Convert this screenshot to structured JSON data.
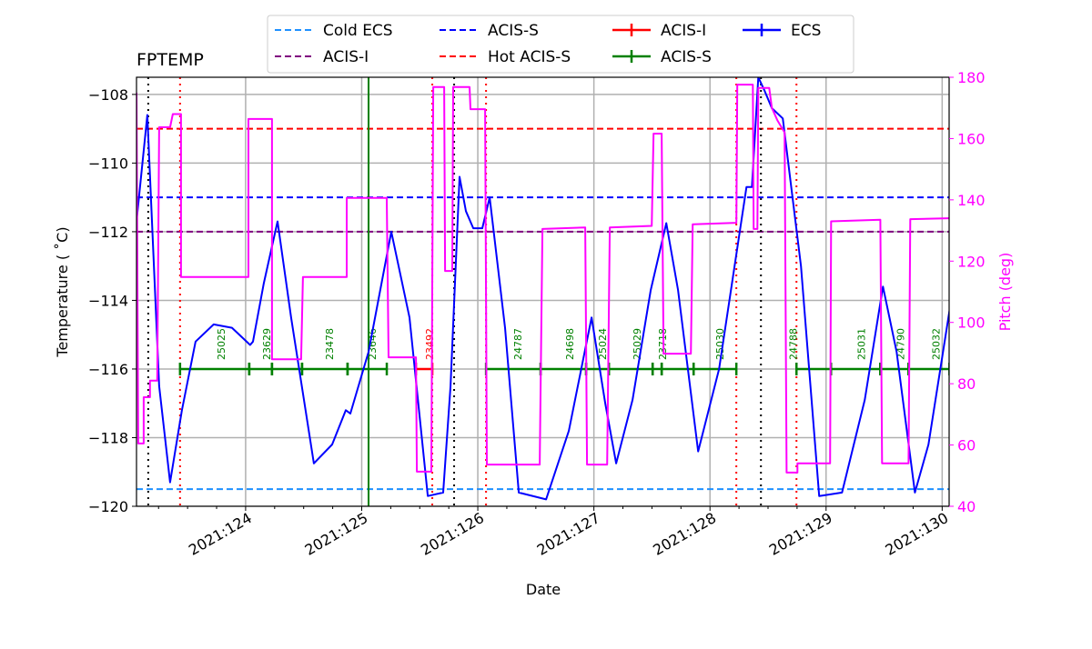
{
  "chart_data": {
    "type": "line",
    "title": "FPTEMP",
    "xlabel": "Date",
    "ylabel": "Temperature ($^\\circ$C)",
    "ylabel_display": "Temperature ( ˚C)",
    "y2label": "Pitch (deg)",
    "xlim": [
      123.06,
      130.06
    ],
    "ylim": [
      -120,
      -107.5
    ],
    "y2lim": [
      40,
      180
    ],
    "grid": true,
    "x_ticks": [
      {
        "value": 124,
        "label": "2021:124"
      },
      {
        "value": 125,
        "label": "2021:125"
      },
      {
        "value": 126,
        "label": "2021:126"
      },
      {
        "value": 127,
        "label": "2021:127"
      },
      {
        "value": 128,
        "label": "2021:128"
      },
      {
        "value": 129,
        "label": "2021:129"
      },
      {
        "value": 130,
        "label": "2021:130"
      }
    ],
    "y_ticks": [
      -120,
      -118,
      -116,
      -114,
      -112,
      -110,
      -108
    ],
    "y2_ticks": [
      40,
      60,
      80,
      100,
      120,
      140,
      160,
      180
    ],
    "legend_position": "top",
    "legend": [
      {
        "label": "Cold ECS",
        "color": "#1e90ff",
        "style": "dashed"
      },
      {
        "label": "ACIS-I",
        "color": "#800080",
        "style": "dashed"
      },
      {
        "label": "ACIS-S",
        "color": "#0000ff",
        "style": "dashed"
      },
      {
        "label": "Hot ACIS-S",
        "color": "#ff0000",
        "style": "dashed"
      },
      {
        "label": "ACIS-I",
        "color": "#ff0000",
        "style": "errorbar"
      },
      {
        "label": "ACIS-S",
        "color": "#008000",
        "style": "errorbar"
      },
      {
        "label": "ECS",
        "color": "#0000ff",
        "style": "errorbar"
      }
    ],
    "limit_lines": [
      {
        "name": "Cold ECS",
        "value": -119.5,
        "color": "#1e90ff"
      },
      {
        "name": "ACIS-I",
        "value": -112,
        "color": "#800080"
      },
      {
        "name": "ACIS-S",
        "value": -111,
        "color": "#0000ff"
      },
      {
        "name": "Hot ACIS-S",
        "value": -109,
        "color": "#ff0000"
      }
    ],
    "series": [
      {
        "axis": "left",
        "color": "#0000ff",
        "points": [
          [
            123.06,
            -111.7
          ],
          [
            123.153,
            -108.6
          ],
          [
            123.255,
            -116.5
          ],
          [
            123.349,
            -119.3
          ],
          [
            123.451,
            -117.2
          ],
          [
            123.569,
            -115.2
          ],
          [
            123.725,
            -114.7
          ],
          [
            123.882,
            -114.8
          ],
          [
            124.039,
            -115.3
          ],
          [
            124.063,
            -115.2
          ],
          [
            124.157,
            -113.5
          ],
          [
            124.275,
            -111.7
          ],
          [
            124.392,
            -114.5
          ],
          [
            124.588,
            -118.75
          ],
          [
            124.745,
            -118.2
          ],
          [
            124.863,
            -117.2
          ],
          [
            124.902,
            -117.3
          ],
          [
            125.059,
            -115.5
          ],
          [
            125.255,
            -112.0
          ],
          [
            125.412,
            -114.5
          ],
          [
            125.569,
            -119.7
          ],
          [
            125.702,
            -119.6
          ],
          [
            125.765,
            -116.5
          ],
          [
            125.843,
            -110.4
          ],
          [
            125.898,
            -111.4
          ],
          [
            125.961,
            -111.9
          ],
          [
            126.039,
            -111.9
          ],
          [
            126.102,
            -111.0
          ],
          [
            126.235,
            -114.8
          ],
          [
            126.353,
            -119.6
          ],
          [
            126.588,
            -119.8
          ],
          [
            126.784,
            -117.8
          ],
          [
            126.98,
            -114.5
          ],
          [
            127.098,
            -117.0
          ],
          [
            127.192,
            -118.75
          ],
          [
            127.333,
            -116.9
          ],
          [
            127.49,
            -113.7
          ],
          [
            127.624,
            -111.75
          ],
          [
            127.725,
            -113.7
          ],
          [
            127.898,
            -118.4
          ],
          [
            128.078,
            -116.0
          ],
          [
            128.314,
            -110.7
          ],
          [
            128.361,
            -110.7
          ],
          [
            128.416,
            -107.5
          ],
          [
            128.471,
            -107.9
          ],
          [
            128.533,
            -108.4
          ],
          [
            128.627,
            -108.7
          ],
          [
            128.784,
            -113.0
          ],
          [
            128.941,
            -119.7
          ],
          [
            129.137,
            -119.6
          ],
          [
            129.333,
            -116.9
          ],
          [
            129.49,
            -113.6
          ],
          [
            129.608,
            -115.5
          ],
          [
            129.765,
            -119.6
          ],
          [
            129.882,
            -118.2
          ],
          [
            130.063,
            -114.3
          ]
        ]
      },
      {
        "axis": "right",
        "color": "#ff00ff",
        "points": [
          [
            123.06,
            175
          ],
          [
            123.075,
            60.5
          ],
          [
            123.122,
            60.5
          ],
          [
            123.122,
            75.6
          ],
          [
            123.176,
            75.6
          ],
          [
            123.176,
            81
          ],
          [
            123.239,
            81
          ],
          [
            123.255,
            163.7
          ],
          [
            123.349,
            163.7
          ],
          [
            123.373,
            168
          ],
          [
            123.443,
            168
          ],
          [
            123.443,
            114.8
          ],
          [
            124.024,
            114.8
          ],
          [
            124.024,
            166.4
          ],
          [
            124.227,
            166.4
          ],
          [
            124.227,
            88
          ],
          [
            124.478,
            88
          ],
          [
            124.494,
            114.8
          ],
          [
            124.871,
            114.8
          ],
          [
            124.871,
            140.6
          ],
          [
            125.216,
            140.6
          ],
          [
            125.231,
            88.6
          ],
          [
            125.467,
            88.6
          ],
          [
            125.475,
            51.3
          ],
          [
            125.6,
            51.3
          ],
          [
            125.616,
            176.8
          ],
          [
            125.71,
            176.8
          ],
          [
            125.718,
            116.8
          ],
          [
            125.78,
            116.8
          ],
          [
            125.788,
            176.8
          ],
          [
            125.929,
            176.8
          ],
          [
            125.937,
            169.6
          ],
          [
            126.063,
            169.6
          ],
          [
            126.078,
            53.6
          ],
          [
            126.533,
            53.6
          ],
          [
            126.557,
            130.5
          ],
          [
            126.925,
            131
          ],
          [
            126.941,
            53.6
          ],
          [
            127.114,
            53.6
          ],
          [
            127.137,
            131
          ],
          [
            127.498,
            131.5
          ],
          [
            127.514,
            161.6
          ],
          [
            127.584,
            161.6
          ],
          [
            127.6,
            89.8
          ],
          [
            127.835,
            89.8
          ],
          [
            127.851,
            132
          ],
          [
            128.227,
            132.5
          ],
          [
            128.235,
            177.6
          ],
          [
            128.369,
            177.6
          ],
          [
            128.376,
            130.5
          ],
          [
            128.408,
            130.5
          ],
          [
            128.416,
            176.5
          ],
          [
            128.51,
            176.5
          ],
          [
            128.533,
            170
          ],
          [
            128.58,
            166
          ],
          [
            128.643,
            162
          ],
          [
            128.66,
            51
          ],
          [
            128.753,
            51
          ],
          [
            128.753,
            54
          ],
          [
            129.035,
            54
          ],
          [
            129.043,
            133
          ],
          [
            129.467,
            133.5
          ],
          [
            129.482,
            54
          ],
          [
            129.71,
            54
          ],
          [
            129.725,
            133.7
          ],
          [
            130.063,
            134
          ]
        ]
      }
    ],
    "vlines": [
      {
        "value": 123.435,
        "color": "#ff0000",
        "style": "dotted"
      },
      {
        "value": 125.608,
        "color": "#ff0000",
        "style": "dotted"
      },
      {
        "value": 126.071,
        "color": "#ff0000",
        "style": "dotted"
      },
      {
        "value": 128.227,
        "color": "#ff0000",
        "style": "dotted"
      },
      {
        "value": 128.745,
        "color": "#ff0000",
        "style": "dotted"
      },
      {
        "value": 123.161,
        "color": "#000000",
        "style": "dotted"
      },
      {
        "value": 125.796,
        "color": "#000000",
        "style": "dotted"
      },
      {
        "value": 128.439,
        "color": "#000000",
        "style": "dotted"
      },
      {
        "value": 125.059,
        "color": "#008000",
        "style": "solid"
      }
    ],
    "observations_level": -116,
    "observations": [
      {
        "start": 123.435,
        "end": 124.031,
        "obsid": "25025",
        "label_at": 123.788,
        "color": "#008000"
      },
      {
        "start": 124.031,
        "end": 124.227,
        "obsid": "23629",
        "label_at": 124.18,
        "color": "#008000"
      },
      {
        "start": 124.227,
        "end": 124.486,
        "obsid": "",
        "color": "#008000"
      },
      {
        "start": 124.486,
        "end": 124.878,
        "obsid": "23478",
        "label_at": 124.722,
        "color": "#008000"
      },
      {
        "start": 124.878,
        "end": 125.216,
        "obsid": "23646",
        "label_at": 125.09,
        "color": "#008000"
      },
      {
        "start": 125.467,
        "end": 125.608,
        "obsid": "23492",
        "label_at": 125.584,
        "color": "#ff0000"
      },
      {
        "start": 126.071,
        "end": 126.541,
        "obsid": "24787",
        "label_at": 126.345,
        "color": "#008000"
      },
      {
        "start": 126.541,
        "end": 126.933,
        "obsid": "24698",
        "label_at": 126.792,
        "color": "#008000"
      },
      {
        "start": 126.933,
        "end": 127.129,
        "obsid": "25024",
        "label_at": 127.075,
        "color": "#008000"
      },
      {
        "start": 127.129,
        "end": 127.506,
        "obsid": "25029",
        "label_at": 127.373,
        "color": "#008000"
      },
      {
        "start": 127.506,
        "end": 127.584,
        "obsid": "23718",
        "label_at": 127.592,
        "color": "#008000"
      },
      {
        "start": 127.584,
        "end": 127.859,
        "obsid": "",
        "color": "#008000"
      },
      {
        "start": 127.859,
        "end": 128.227,
        "obsid": "25030",
        "label_at": 128.086,
        "color": "#008000"
      },
      {
        "start": 128.745,
        "end": 129.043,
        "obsid": "24788",
        "label_at": 128.714,
        "color": "#008000"
      },
      {
        "start": 129.043,
        "end": 129.467,
        "obsid": "25031",
        "label_at": 129.302,
        "color": "#008000"
      },
      {
        "start": 129.467,
        "end": 129.71,
        "obsid": "24790",
        "label_at": 129.639,
        "color": "#008000"
      },
      {
        "start": 129.71,
        "end": 130.063,
        "obsid": "25032",
        "label_at": 129.945,
        "color": "#008000"
      }
    ]
  }
}
